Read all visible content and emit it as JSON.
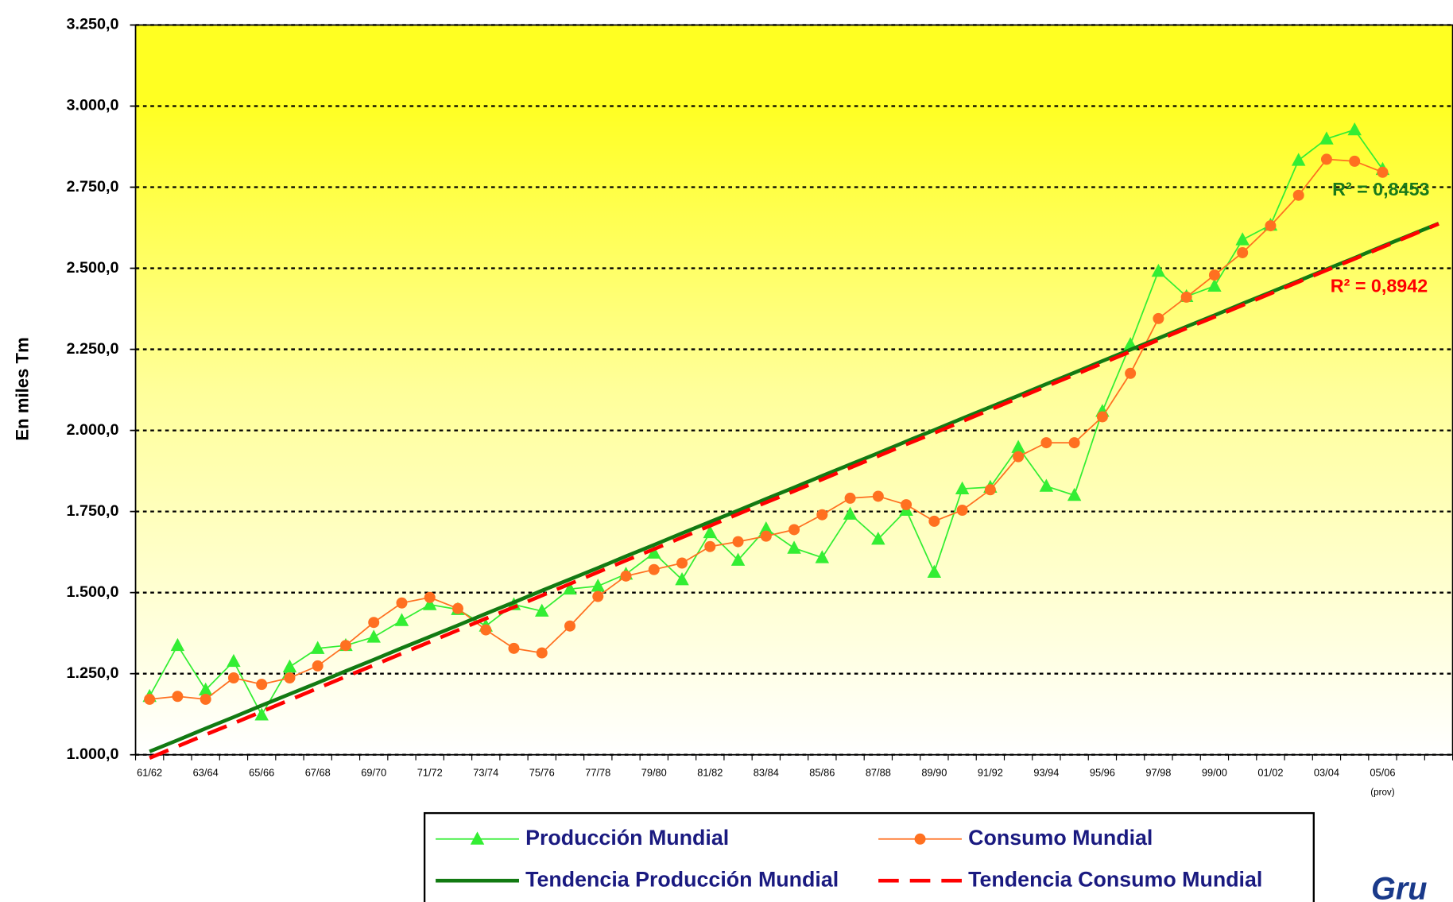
{
  "chart_data": {
    "type": "line",
    "y_axis_label": "En miles Tm",
    "ylim": [
      1000,
      3250
    ],
    "yticks": [
      {
        "value": 1000,
        "label": "1.000,0"
      },
      {
        "value": 1250,
        "label": "1.250,0"
      },
      {
        "value": 1500,
        "label": "1.500,0"
      },
      {
        "value": 1750,
        "label": "1.750,0"
      },
      {
        "value": 2000,
        "label": "2.000,0"
      },
      {
        "value": 2250,
        "label": "2.250,0"
      },
      {
        "value": 2500,
        "label": "2.500,0"
      },
      {
        "value": 2750,
        "label": "2.750,0"
      },
      {
        "value": 3000,
        "label": "3.000,0"
      },
      {
        "value": 3250,
        "label": "3.250,0"
      }
    ],
    "grid": true,
    "categories": [
      "61/62",
      null,
      "63/64",
      null,
      "65/66",
      null,
      "67/68",
      null,
      "69/70",
      null,
      "71/72",
      null,
      "73/74",
      null,
      "75/76",
      null,
      "77/78",
      null,
      "79/80",
      null,
      "81/82",
      null,
      "83/84",
      null,
      "85/86",
      null,
      "87/88",
      null,
      "89/90",
      null,
      "91/92",
      null,
      "93/94",
      null,
      "95/96",
      null,
      "97/98",
      null,
      "99/00",
      null,
      "01/02",
      null,
      "03/04",
      null,
      "05/06",
      null,
      null
    ],
    "x_annotation": "(prov)",
    "series": [
      {
        "name": "Producción Mundial",
        "color": "#33ee33",
        "marker": "triangle",
        "dashed": false,
        "width": 1.5,
        "values": [
          1180,
          1337,
          1200,
          1288,
          1123,
          1271,
          1328,
          1337,
          1363,
          1414,
          1463,
          1448,
          1397,
          1463,
          1443,
          1511,
          1520,
          1557,
          1622,
          1540,
          1685,
          1600,
          1697,
          1637,
          1608,
          1742,
          1665,
          1754,
          1563,
          1820,
          1825,
          1948,
          1828,
          1800,
          2059,
          2265,
          2491,
          2413,
          2445,
          2588,
          2633,
          2833,
          2899,
          2927,
          2805,
          null,
          null
        ]
      },
      {
        "name": "Consumo Mundial",
        "color": "#ff7020",
        "marker": "circle",
        "dashed": false,
        "width": 1.5,
        "values": [
          1171,
          1180,
          1171,
          1237,
          1217,
          1237,
          1274,
          1337,
          1408,
          1468,
          1485,
          1451,
          1385,
          1328,
          1314,
          1397,
          1488,
          1551,
          1571,
          1591,
          1642,
          1657,
          1674,
          1694,
          1740,
          1791,
          1797,
          1771,
          1720,
          1754,
          1817,
          1919,
          1962,
          1962,
          2042,
          2176,
          2345,
          2411,
          2479,
          2548,
          2631,
          2725,
          2836,
          2830,
          2796,
          null,
          null
        ]
      },
      {
        "name": "Tendencia Producción Mundial",
        "color": "#127a12",
        "marker": "none",
        "dashed": false,
        "width": 4,
        "values": [
          1010,
          1045,
          1081,
          1116,
          1152,
          1187,
          1222,
          1258,
          1293,
          1329,
          1364,
          1399,
          1435,
          1470,
          1506,
          1541,
          1576,
          1612,
          1647,
          1683,
          1718,
          1753,
          1789,
          1824,
          1860,
          1895,
          1930,
          1966,
          2001,
          2037,
          2072,
          2107,
          2143,
          2178,
          2214,
          2249,
          2284,
          2320,
          2355,
          2391,
          2426,
          2461,
          2497,
          2532,
          2568,
          2603,
          2638
        ]
      },
      {
        "name": "Tendencia Consumo Mundial",
        "color": "#ff0000",
        "marker": "none",
        "dashed": true,
        "width": 4,
        "values": [
          990,
          1026,
          1062,
          1097,
          1133,
          1169,
          1205,
          1241,
          1276,
          1312,
          1348,
          1384,
          1420,
          1455,
          1491,
          1527,
          1563,
          1599,
          1634,
          1670,
          1706,
          1742,
          1778,
          1813,
          1849,
          1885,
          1921,
          1957,
          1992,
          2028,
          2064,
          2100,
          2136,
          2171,
          2207,
          2243,
          2279,
          2315,
          2350,
          2386,
          2422,
          2458,
          2494,
          2529,
          2565,
          2601,
          2637
        ]
      }
    ],
    "annotations": [
      {
        "text": "R² = 0,8453",
        "color": "#1a7a1a"
      },
      {
        "text": "R² = 0,8942",
        "color": "#ff0000"
      }
    ],
    "logo_text": "Gru"
  }
}
